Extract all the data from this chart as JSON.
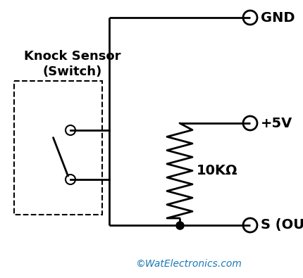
{
  "background_color": "#ffffff",
  "line_color": "#000000",
  "label_gnd": "GND",
  "label_5v": "+5V",
  "label_s": "S (OUT)",
  "label_resistor": "10KΩ",
  "label_sensor_line1": "Knock Sensor",
  "label_sensor_line2": "(Switch)",
  "label_copyright": "©WatElectronics.com",
  "copyright_color": "#1a7ab5",
  "figsize": [
    4.31,
    3.95
  ],
  "dpi": 100
}
